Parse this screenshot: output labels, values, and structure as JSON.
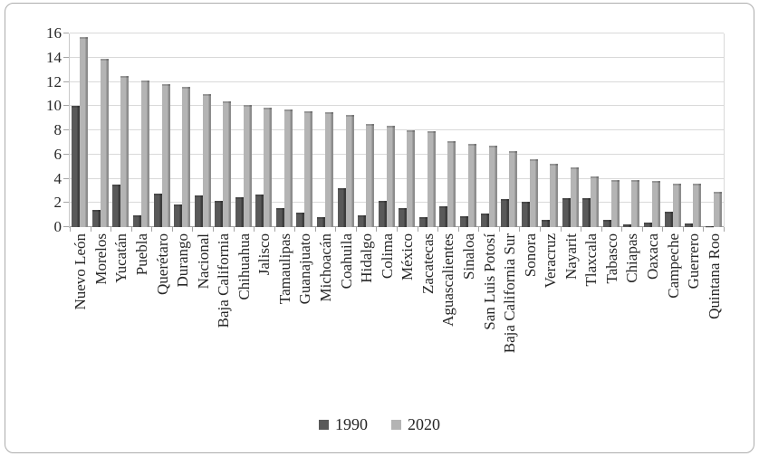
{
  "chart_data": {
    "type": "bar",
    "title": "",
    "xlabel": "",
    "ylabel": "",
    "ylim": [
      0,
      16
    ],
    "ytick_step": 2,
    "ytick_labels": [
      "0",
      "2",
      "4",
      "6",
      "8",
      "10",
      "12",
      "14",
      "16"
    ],
    "grid": true,
    "legend_position": "bottom",
    "categories": [
      "Nuevo León",
      "Morelos",
      "Yucatán",
      "Puebla",
      "Querétaro",
      "Durango",
      "Nacional",
      "Baja California",
      "Chihuahua",
      "Jalisco",
      "Tamaulipas",
      "Guanajuato",
      "Michoacán",
      "Coahuila",
      "Hidalgo",
      "Colima",
      "México",
      "Zacatecas",
      "Aguascalientes",
      "Sinaloa",
      "San Luis Potosí",
      "Baja California Sur",
      "Sonora",
      "Veracruz",
      "Nayarit",
      "Tlaxcala",
      "Tabasco",
      "Chiapas",
      "Oaxaca",
      "Campeche",
      "Guerrero",
      "Quintana Roo"
    ],
    "series": [
      {
        "name": "1990",
        "color": "#595959",
        "edge_color": "#3d3d3d",
        "values": [
          10.0,
          1.4,
          3.5,
          1.0,
          2.8,
          1.9,
          2.6,
          2.2,
          2.5,
          2.7,
          1.6,
          1.2,
          0.8,
          3.2,
          1.0,
          2.2,
          1.6,
          0.8,
          1.7,
          0.9,
          1.1,
          2.3,
          2.1,
          0.6,
          2.4,
          2.4,
          0.6,
          0.2,
          0.4,
          1.3,
          0.3,
          0.1
        ]
      },
      {
        "name": "2020",
        "color": "#b4b4b4",
        "edge_color": "#8d8d8d",
        "values": [
          15.7,
          13.9,
          12.5,
          12.1,
          11.8,
          11.6,
          11.0,
          10.4,
          10.1,
          9.9,
          9.7,
          9.6,
          9.5,
          9.3,
          8.5,
          8.4,
          8.0,
          7.9,
          7.1,
          6.9,
          6.7,
          6.3,
          5.6,
          5.2,
          4.9,
          4.2,
          3.9,
          3.9,
          3.8,
          3.6,
          3.6,
          2.9
        ]
      }
    ],
    "colors": {
      "gridline": "#d9d9d9",
      "axis": "#a6a6a6",
      "text": "#262626",
      "frame_border": "#adadad"
    }
  },
  "legend": {
    "item_1990": "1990",
    "item_2020": "2020"
  }
}
